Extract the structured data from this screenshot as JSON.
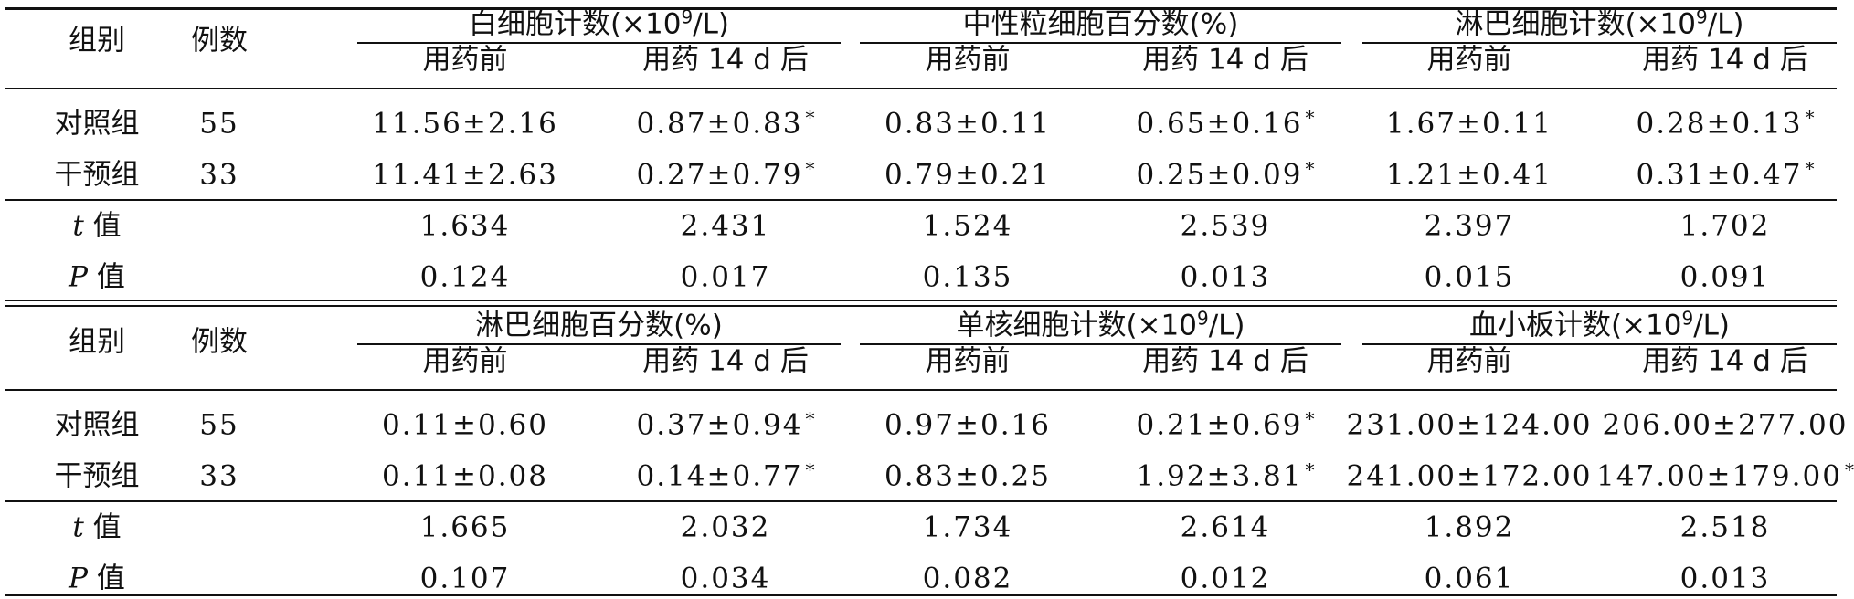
{
  "columns": {
    "group": "组别",
    "count": "例数",
    "before": "用药前",
    "after": "用药 14 d 后"
  },
  "section1": {
    "groups": [
      {
        "title": "白细胞计数(×10",
        "sup": "9",
        "unit": "/L)"
      },
      {
        "title": "中性粒细胞百分数(%)"
      },
      {
        "title": "淋巴细胞计数(×10",
        "sup": "9",
        "unit": "/L)"
      }
    ],
    "rows": [
      {
        "group": "对照组",
        "n": "55",
        "vals": [
          "11.56±2.16",
          "0.87±0.83",
          "0.83±0.11",
          "0.65±0.16",
          "1.67±0.11",
          "0.28±0.13"
        ]
      },
      {
        "group": "干预组",
        "n": "33",
        "vals": [
          "11.41±2.63",
          "0.27±0.79",
          "0.79±0.21",
          "0.25±0.09",
          "1.21±0.41",
          "0.31±0.47"
        ]
      }
    ],
    "t": {
      "label": "t",
      "suffix": "值",
      "vals": [
        "1.634",
        "2.431",
        "1.524",
        "2.539",
        "2.397",
        "1.702"
      ]
    },
    "p": {
      "label": "P",
      "suffix": "值",
      "vals": [
        "0.124",
        "0.017",
        "0.135",
        "0.013",
        "0.015",
        "0.091"
      ]
    }
  },
  "section2": {
    "groups": [
      {
        "title": "淋巴细胞百分数(%)"
      },
      {
        "title": "单核细胞计数(×10",
        "sup": "9",
        "unit": "/L)"
      },
      {
        "title": "血小板计数(×10",
        "sup": "9",
        "unit": "/L)"
      }
    ],
    "rows": [
      {
        "group": "对照组",
        "n": "55",
        "vals": [
          "0.11±0.60",
          "0.37±0.94",
          "0.97±0.16",
          "0.21±0.69",
          "231.00±124.00",
          "206.00±277.00"
        ]
      },
      {
        "group": "干预组",
        "n": "33",
        "vals": [
          "0.11±0.08",
          "0.14±0.77",
          "0.83±0.25",
          "1.92±3.81",
          "241.00±172.00",
          "147.00±179.00"
        ]
      }
    ],
    "t": {
      "label": "t",
      "suffix": "值",
      "vals": [
        "1.665",
        "2.032",
        "1.734",
        "2.614",
        "1.892",
        "2.518"
      ]
    },
    "p": {
      "label": "P",
      "suffix": "值",
      "vals": [
        "0.107",
        "0.034",
        "0.082",
        "0.012",
        "0.061",
        "0.013"
      ]
    }
  },
  "marks": {
    "significance": "*",
    "starred": {
      "section1": [
        [
          0,
          1
        ],
        [
          0,
          3
        ],
        [
          0,
          5
        ],
        [
          1,
          1
        ],
        [
          1,
          3
        ],
        [
          1,
          5
        ]
      ],
      "section2": [
        [
          0,
          1
        ],
        [
          0,
          3
        ],
        [
          1,
          1
        ],
        [
          1,
          3
        ],
        [
          1,
          5
        ]
      ]
    }
  }
}
